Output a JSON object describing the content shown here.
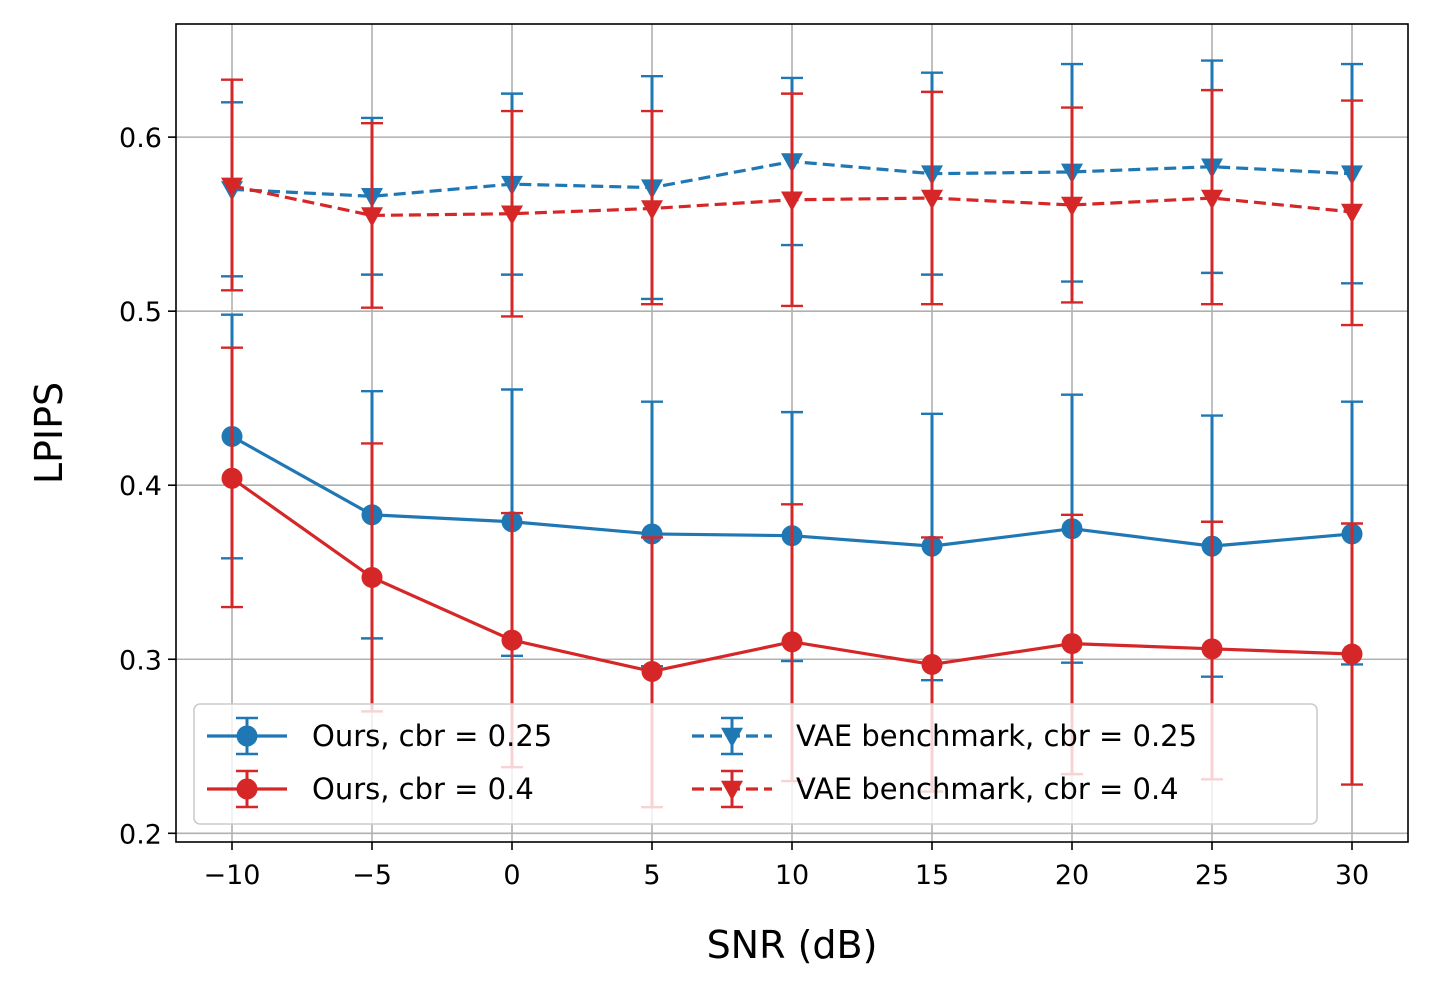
{
  "chart_data": {
    "type": "line",
    "title": "",
    "xlabel": "SNR (dB)",
    "ylabel": "LPIPS",
    "x": [
      -10,
      -5,
      0,
      5,
      10,
      15,
      20,
      25,
      30
    ],
    "xticks": [
      -10,
      -5,
      0,
      5,
      10,
      15,
      20,
      25,
      30
    ],
    "xtick_labels": [
      "−10",
      "−5",
      "0",
      "5",
      "10",
      "15",
      "20",
      "25",
      "30"
    ],
    "yticks": [
      0.2,
      0.3,
      0.4,
      0.5,
      0.6
    ],
    "ytick_labels": [
      "0.2",
      "0.3",
      "0.4",
      "0.5",
      "0.6"
    ],
    "xlim": [
      -12,
      32
    ],
    "ylim": [
      0.195,
      0.665
    ],
    "grid": true,
    "legend_position": "lower-center",
    "series": [
      {
        "name": "Ours, cbr = 0.25",
        "color": "#1f77b4",
        "linestyle": "solid",
        "marker": "circle",
        "values": [
          0.428,
          0.383,
          0.379,
          0.372,
          0.371,
          0.365,
          0.375,
          0.365,
          0.372
        ],
        "err_low": [
          0.358,
          0.312,
          0.302,
          0.296,
          0.299,
          0.288,
          0.298,
          0.29,
          0.297
        ],
        "err_high": [
          0.498,
          0.454,
          0.455,
          0.448,
          0.442,
          0.441,
          0.452,
          0.44,
          0.448
        ]
      },
      {
        "name": "Ours, cbr = 0.4",
        "color": "#d62728",
        "linestyle": "solid",
        "marker": "circle",
        "values": [
          0.404,
          0.347,
          0.311,
          0.293,
          0.31,
          0.297,
          0.309,
          0.306,
          0.303
        ],
        "err_low": [
          0.33,
          0.27,
          0.238,
          0.215,
          0.23,
          0.224,
          0.234,
          0.231,
          0.228
        ],
        "err_high": [
          0.479,
          0.424,
          0.384,
          0.37,
          0.389,
          0.37,
          0.383,
          0.379,
          0.378
        ]
      },
      {
        "name": "VAE benchmark, cbr = 0.25",
        "color": "#1f77b4",
        "linestyle": "dashed",
        "marker": "triangle-down",
        "values": [
          0.57,
          0.566,
          0.573,
          0.571,
          0.586,
          0.579,
          0.58,
          0.583,
          0.579
        ],
        "err_low": [
          0.52,
          0.521,
          0.521,
          0.507,
          0.538,
          0.521,
          0.517,
          0.522,
          0.516
        ],
        "err_high": [
          0.62,
          0.611,
          0.625,
          0.635,
          0.634,
          0.637,
          0.642,
          0.644,
          0.642
        ]
      },
      {
        "name": "VAE benchmark, cbr = 0.4",
        "color": "#d62728",
        "linestyle": "dashed",
        "marker": "triangle-down",
        "values": [
          0.572,
          0.555,
          0.556,
          0.559,
          0.564,
          0.565,
          0.561,
          0.565,
          0.557
        ],
        "err_low": [
          0.512,
          0.502,
          0.497,
          0.504,
          0.503,
          0.504,
          0.505,
          0.504,
          0.492
        ],
        "err_high": [
          0.633,
          0.608,
          0.615,
          0.615,
          0.625,
          0.626,
          0.617,
          0.627,
          0.621
        ]
      }
    ]
  }
}
